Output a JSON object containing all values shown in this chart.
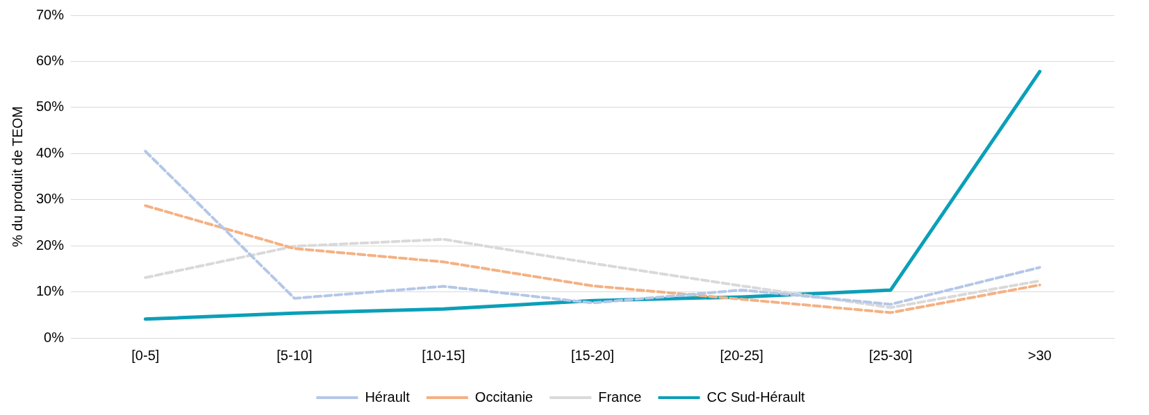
{
  "chart_data": {
    "type": "line",
    "ylabel": "% du produit de TEOM",
    "categories": [
      "[0-5]",
      "[5-10]",
      "[10-15]",
      "[15-20]",
      "[20-25]",
      "[25-30]",
      ">30"
    ],
    "series": [
      {
        "name": "Hérault",
        "color": "#b4c7e7",
        "line_style": "dashed",
        "values": [
          40.5,
          8.6,
          11.2,
          7.6,
          10.4,
          7.3,
          15.3
        ]
      },
      {
        "name": "Occitanie",
        "color": "#f4b183",
        "line_style": "dashed",
        "values": [
          28.7,
          19.4,
          16.5,
          11.3,
          8.4,
          5.5,
          11.5
        ]
      },
      {
        "name": "France",
        "color": "#d9d9d9",
        "line_style": "dashed",
        "values": [
          13.1,
          19.9,
          21.4,
          16.2,
          11.3,
          6.6,
          12.4
        ]
      },
      {
        "name": "CC Sud-Hérault",
        "color": "#0b9fb8",
        "line_style": "solid",
        "values": [
          4.1,
          5.4,
          6.3,
          8.1,
          8.9,
          10.4,
          57.8
        ]
      }
    ],
    "ylim": [
      0,
      70
    ],
    "yticks": [
      {
        "value": 0,
        "label": "0%"
      },
      {
        "value": 10,
        "label": "10%"
      },
      {
        "value": 20,
        "label": "20%"
      },
      {
        "value": 30,
        "label": "30%"
      },
      {
        "value": 40,
        "label": "40%"
      },
      {
        "value": 50,
        "label": "50%"
      },
      {
        "value": 60,
        "label": "60%"
      },
      {
        "value": 70,
        "label": "70%"
      }
    ],
    "grid": "y",
    "legend": "bottom",
    "marker": "none"
  }
}
